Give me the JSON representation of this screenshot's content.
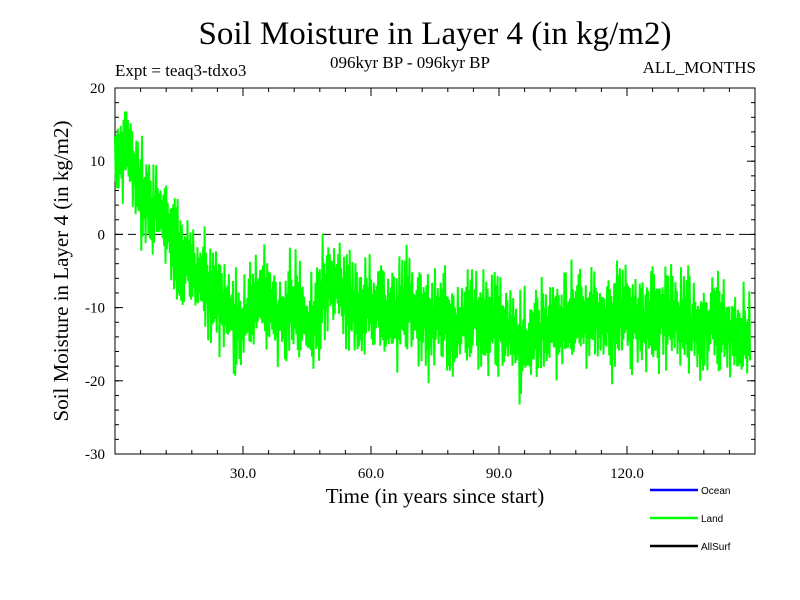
{
  "header": {
    "title": "Soil Moisture in Layer 4 (in kg/m2)",
    "expt": "Expt = teaq3-tdxo3",
    "period": "096kyr BP - 096kyr BP",
    "months": "ALL_MONTHS"
  },
  "chart_data": {
    "type": "line",
    "title": "Soil Moisture in Layer 4 (in kg/m2)",
    "xlabel": "Time (in years since start)",
    "ylabel": "Soil Moisture in Layer 4 (in kg/m2)",
    "xlim": [
      0,
      150
    ],
    "ylim": [
      -30,
      20
    ],
    "xticks": [
      30,
      60,
      90,
      120
    ],
    "xtick_labels": [
      "30.0",
      "60.0",
      "90.0",
      "120.0"
    ],
    "yticks": [
      -30,
      -20,
      -10,
      0,
      10,
      20
    ],
    "ytick_labels": [
      "-30",
      "-20",
      "-10",
      "0",
      "10",
      "20"
    ],
    "zero_line": true,
    "legend": [
      {
        "name": "Ocean",
        "color": "#0000ff"
      },
      {
        "name": "Land",
        "color": "#00ff00"
      },
      {
        "name": "AllSurf",
        "color": "#000000"
      }
    ],
    "series": [
      {
        "name": "Land",
        "color": "#00ff00",
        "x_start": 0,
        "x_step": 1,
        "values": [
          9,
          11,
          13,
          12,
          10,
          8,
          6,
          5,
          4,
          3,
          4,
          2,
          1,
          0,
          -1,
          -2,
          -3,
          -4,
          -5,
          -6,
          -6,
          -7,
          -8,
          -9,
          -9,
          -10,
          -10,
          -11,
          -11,
          -12,
          -12,
          -11,
          -10,
          -9,
          -9,
          -9,
          -9,
          -10,
          -11,
          -12,
          -11,
          -10,
          -10,
          -10,
          -11,
          -12,
          -13,
          -12,
          -10,
          -8,
          -6,
          -6,
          -7,
          -8,
          -9,
          -9,
          -10,
          -11,
          -11,
          -10,
          -10,
          -10,
          -10,
          -11,
          -12,
          -12,
          -11,
          -10,
          -9,
          -9,
          -10,
          -11,
          -11,
          -12,
          -12,
          -12,
          -11,
          -11,
          -12,
          -12,
          -13,
          -12,
          -12,
          -11,
          -11,
          -11,
          -11,
          -12,
          -12,
          -12,
          -12,
          -13,
          -13,
          -14,
          -14,
          -15,
          -15,
          -15,
          -14,
          -14,
          -13,
          -13,
          -12,
          -12,
          -12,
          -12,
          -12,
          -12,
          -11,
          -11,
          -11,
          -11,
          -11,
          -11,
          -12,
          -12,
          -12,
          -12,
          -11,
          -11,
          -11,
          -11,
          -11,
          -12,
          -12,
          -12,
          -12,
          -12,
          -11,
          -11,
          -11,
          -11,
          -12,
          -12,
          -12,
          -13,
          -13,
          -13,
          -12,
          -12,
          -12,
          -12,
          -12,
          -13,
          -13,
          -13,
          -14,
          -14,
          -15,
          -15
        ],
        "fluctuation": 4
      },
      {
        "name": "Ocean",
        "color": "#0000ff",
        "values": []
      },
      {
        "name": "AllSurf",
        "color": "#000000",
        "values": []
      }
    ]
  }
}
